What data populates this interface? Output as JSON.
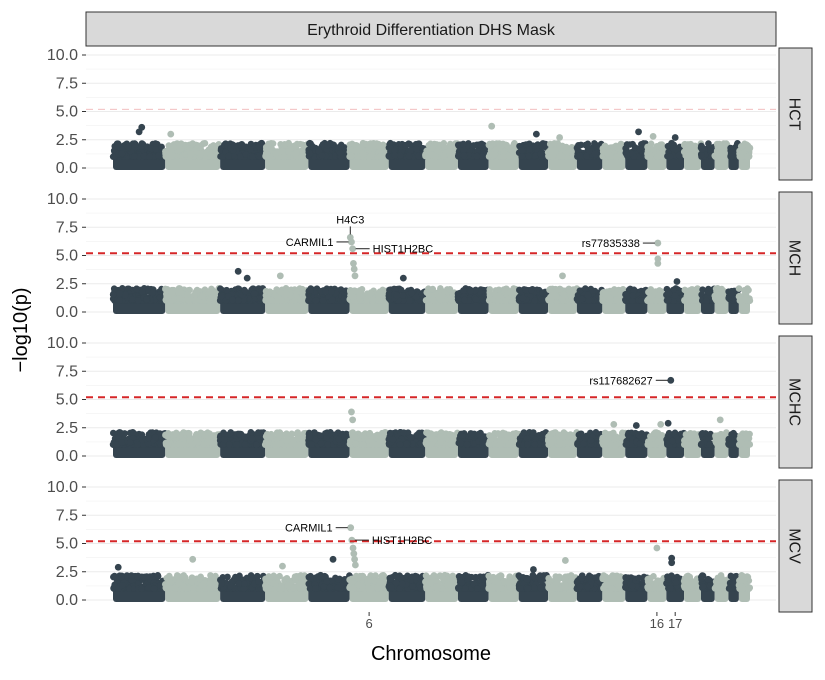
{
  "chart_data": {
    "type": "scatter",
    "title": "Erythroid Differentiation DHS Mask",
    "xlabel": "Chromosome",
    "ylabel": "−log10(p)",
    "x_ticks": [
      "6",
      "16",
      "17"
    ],
    "ylim": [
      0,
      10
    ],
    "y_ticks": [
      "0.0",
      "2.5",
      "5.0",
      "7.5",
      "10.0"
    ],
    "significance_line": 5.2,
    "colors": {
      "odd_chromosomes": "#35444f",
      "even_chromosomes": "#afbdb4",
      "threshold": "#d62728",
      "strip_fill": "#d9d9d9",
      "grid": "#ebebeb"
    },
    "chromosome_bounds": {
      "1": [
        0,
        8
      ],
      "2": [
        8,
        16.4
      ],
      "3": [
        16.4,
        23.3
      ],
      "4": [
        23.3,
        29.9
      ],
      "5": [
        29.9,
        36.2
      ],
      "6": [
        36.2,
        42.2
      ],
      "7": [
        42.2,
        47.8
      ],
      "8": [
        47.8,
        52.8
      ],
      "9": [
        52.8,
        57.5
      ],
      "10": [
        57.5,
        62.1
      ],
      "11": [
        62.1,
        66.6
      ],
      "12": [
        66.6,
        71
      ],
      "13": [
        71,
        74.9
      ],
      "14": [
        74.9,
        78.4
      ],
      "15": [
        78.4,
        81.8
      ],
      "16": [
        81.8,
        84.7
      ],
      "17": [
        84.7,
        87.4
      ],
      "18": [
        87.4,
        90
      ],
      "19": [
        90,
        92.1
      ],
      "20": [
        92.1,
        94.2
      ],
      "21": [
        94.2,
        95.8
      ],
      "22": [
        95.8,
        97.5
      ]
    },
    "panels": [
      {
        "name": "HCT",
        "max_background": 2.2,
        "top_hits": [
          {
            "chr": "1",
            "pos": 0.55,
            "p": 3.6
          },
          {
            "chr": "1",
            "pos": 0.5,
            "p": 3.2
          },
          {
            "chr": "2",
            "pos": 0.1,
            "p": 3.0
          },
          {
            "chr": "10",
            "pos": 0.1,
            "p": 3.7
          },
          {
            "chr": "11",
            "pos": 0.6,
            "p": 3.0
          },
          {
            "chr": "15",
            "pos": 0.6,
            "p": 3.2
          },
          {
            "chr": "12",
            "pos": 0.4,
            "p": 2.7
          },
          {
            "chr": "16",
            "pos": 0.3,
            "p": 2.8
          },
          {
            "chr": "17",
            "pos": 0.5,
            "p": 2.7
          }
        ],
        "labels": []
      },
      {
        "name": "MCH",
        "max_background": 2.1,
        "top_hits": [
          {
            "chr": "6",
            "pos": 0.02,
            "p": 6.6
          },
          {
            "chr": "6",
            "pos": 0.05,
            "p": 6.2
          },
          {
            "chr": "6",
            "pos": 0.08,
            "p": 5.6
          },
          {
            "chr": "6",
            "pos": 0.1,
            "p": 4.3
          },
          {
            "chr": "6",
            "pos": 0.12,
            "p": 3.8
          },
          {
            "chr": "6",
            "pos": 0.14,
            "p": 3.2
          },
          {
            "chr": "16",
            "pos": 0.55,
            "p": 6.1
          },
          {
            "chr": "16",
            "pos": 0.55,
            "p": 4.7
          },
          {
            "chr": "16",
            "pos": 0.55,
            "p": 4.3
          },
          {
            "chr": "3",
            "pos": 0.4,
            "p": 3.6
          },
          {
            "chr": "4",
            "pos": 0.35,
            "p": 3.2
          },
          {
            "chr": "3",
            "pos": 0.6,
            "p": 3.0
          },
          {
            "chr": "12",
            "pos": 0.5,
            "p": 3.2
          },
          {
            "chr": "17",
            "pos": 0.6,
            "p": 2.7
          },
          {
            "chr": "7",
            "pos": 0.4,
            "p": 3.0
          }
        ],
        "labels": [
          {
            "text": "H4C3",
            "chr": "6",
            "pos": 0.02,
            "p": 6.6,
            "side": "top"
          },
          {
            "text": "CARMIL1",
            "chr": "6",
            "pos": 0.05,
            "p": 6.2,
            "side": "left"
          },
          {
            "text": "HIST1H2BC",
            "chr": "6",
            "pos": 0.08,
            "p": 5.6,
            "side": "right"
          },
          {
            "text": "rs77835338",
            "chr": "16",
            "pos": 0.55,
            "p": 6.1,
            "side": "left"
          }
        ]
      },
      {
        "name": "MCHC",
        "max_background": 2.1,
        "top_hits": [
          {
            "chr": "6",
            "pos": 0.05,
            "p": 3.9
          },
          {
            "chr": "6",
            "pos": 0.08,
            "p": 3.2
          },
          {
            "chr": "17",
            "pos": 0.25,
            "p": 6.7
          },
          {
            "chr": "17",
            "pos": 0.1,
            "p": 2.9
          },
          {
            "chr": "20",
            "pos": 0.4,
            "p": 3.2
          },
          {
            "chr": "16",
            "pos": 0.7,
            "p": 2.8
          },
          {
            "chr": "14",
            "pos": 0.5,
            "p": 2.8
          },
          {
            "chr": "15",
            "pos": 0.5,
            "p": 2.7
          }
        ],
        "labels": [
          {
            "text": "rs117682627",
            "chr": "17",
            "pos": 0.25,
            "p": 6.7,
            "side": "left"
          }
        ]
      },
      {
        "name": "MCV",
        "max_background": 2.2,
        "top_hits": [
          {
            "chr": "6",
            "pos": 0.03,
            "p": 6.4
          },
          {
            "chr": "6",
            "pos": 0.06,
            "p": 5.3
          },
          {
            "chr": "6",
            "pos": 0.09,
            "p": 4.6
          },
          {
            "chr": "6",
            "pos": 0.11,
            "p": 4.1
          },
          {
            "chr": "6",
            "pos": 0.13,
            "p": 3.6
          },
          {
            "chr": "6",
            "pos": 0.15,
            "p": 3.1
          },
          {
            "chr": "16",
            "pos": 0.5,
            "p": 4.6
          },
          {
            "chr": "17",
            "pos": 0.3,
            "p": 3.7
          },
          {
            "chr": "17",
            "pos": 0.3,
            "p": 3.3
          },
          {
            "chr": "2",
            "pos": 0.5,
            "p": 3.6
          },
          {
            "chr": "5",
            "pos": 0.6,
            "p": 3.6
          },
          {
            "chr": "12",
            "pos": 0.6,
            "p": 3.5
          },
          {
            "chr": "1",
            "pos": 0.1,
            "p": 2.9
          },
          {
            "chr": "4",
            "pos": 0.4,
            "p": 3.0
          },
          {
            "chr": "11",
            "pos": 0.5,
            "p": 2.7
          }
        ],
        "labels": [
          {
            "text": "CARMIL1",
            "chr": "6",
            "pos": 0.03,
            "p": 6.4,
            "side": "left"
          },
          {
            "text": "HIST1H2BC",
            "chr": "6",
            "pos": 0.06,
            "p": 5.3,
            "side": "right"
          }
        ]
      }
    ]
  }
}
